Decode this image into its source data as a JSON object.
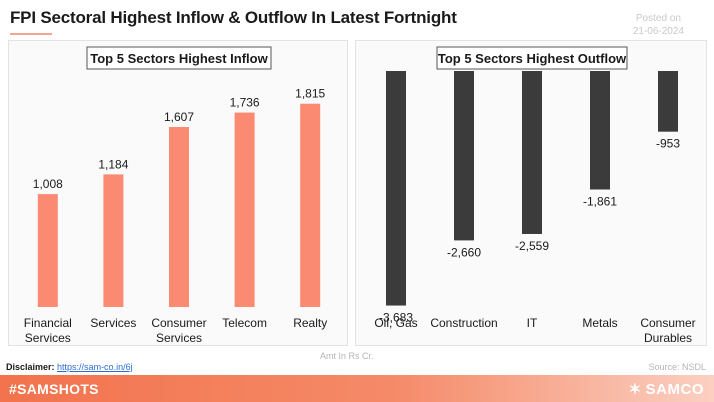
{
  "header": {
    "title": "FPI Sectoral Highest Inflow & Outflow In Latest Fortnight",
    "posted_label": "Posted on",
    "posted_date": "21-06-2024"
  },
  "chart_data": [
    {
      "type": "bar",
      "title": "Top 5 Sectors Highest Inflow",
      "categories": [
        [
          "Financial",
          "Services"
        ],
        [
          "Services"
        ],
        [
          "Consumer",
          "Services"
        ],
        [
          "Telecom"
        ],
        [
          "Realty"
        ]
      ],
      "values": [
        1008,
        1184,
        1607,
        1736,
        1815
      ],
      "labels": [
        "1,008",
        "1,184",
        "1,607",
        "1,736",
        "1,815"
      ],
      "color": "#fa8a72",
      "ylim": [
        0,
        2000
      ]
    },
    {
      "type": "bar",
      "title": "Top 5 Sectors Highest Outflow",
      "categories": [
        [
          "Oil, Gas"
        ],
        [
          "Construction"
        ],
        [
          "IT"
        ],
        [
          "Metals"
        ],
        [
          "Consumer",
          "Durables"
        ]
      ],
      "values": [
        -3683,
        -2660,
        -2559,
        -1861,
        -953
      ],
      "labels": [
        "-3,683",
        "-2,660",
        "-2,559",
        "-1,861",
        "-953"
      ],
      "color": "#3b3b3b",
      "ylim": [
        -3800,
        0
      ]
    }
  ],
  "notes": {
    "units": "Amt In Rs Cr.",
    "source": "Source: NSDL",
    "disclaimer_label": "Disclaimer:",
    "disclaimer_link": "https://sam-co.in/6j"
  },
  "footer": {
    "hashtag": "#SAMSHOTS",
    "brand": "SAMCO",
    "brand_icon": "samco-logo-icon"
  }
}
